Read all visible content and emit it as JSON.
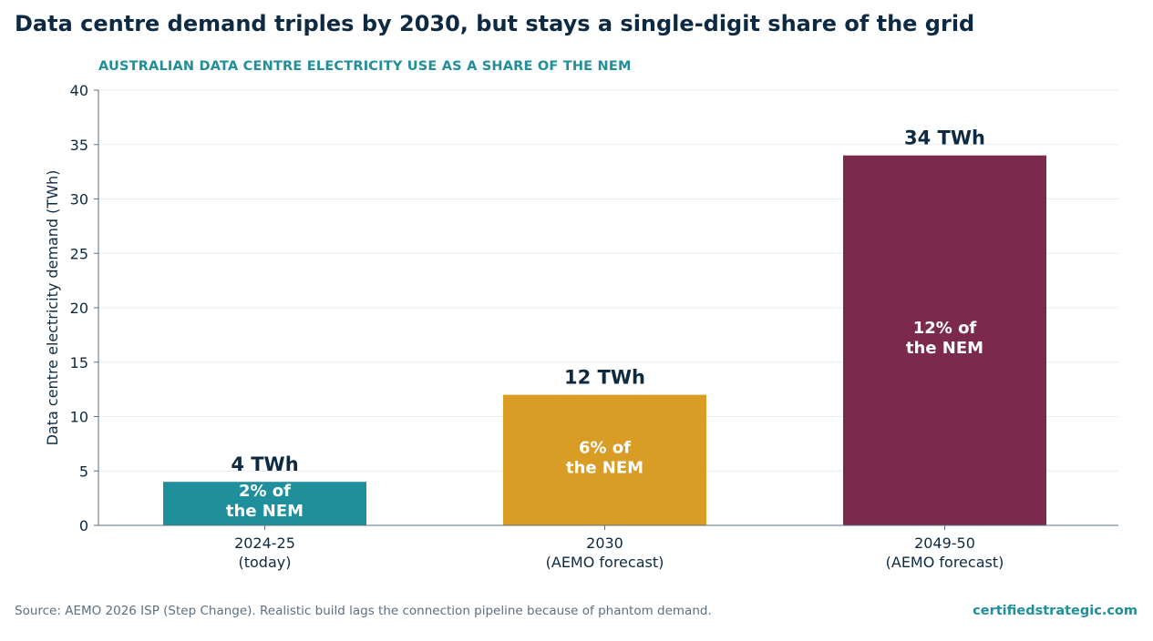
{
  "title": "Data centre demand triples by 2030, but stays a single-digit share of the grid",
  "subtitle": "AUSTRALIAN DATA CENTRE ELECTRICITY USE AS A SHARE OF THE NEM",
  "footer": {
    "source": "Source: AEMO 2026 ISP (Step Change). Realistic build lags the connection pipeline because of phantom demand.",
    "brand": "certifiedstrategic.com"
  },
  "colors": {
    "title": "#0d2a42",
    "accent": "#1f8f9b",
    "bar_2024": "#1f8f9b",
    "bar_2030": "#d99c24",
    "bar_2050": "#7b2a4e",
    "axis": "#5b6f80",
    "grid": "#e8ecef"
  },
  "chart_data": {
    "type": "bar",
    "title": "",
    "xlabel": "",
    "ylabel": "Data centre electricity demand (TWh)",
    "ylim": [
      0,
      40
    ],
    "yticks": [
      "0",
      "5",
      "10",
      "15",
      "20",
      "25",
      "30",
      "35",
      "40"
    ],
    "grid": true,
    "categories": [
      [
        "2024-25",
        "(today)"
      ],
      [
        "2030",
        "(AEMO forecast)"
      ],
      [
        "2049-50",
        "(AEMO forecast)"
      ]
    ],
    "values": [
      4,
      12,
      34
    ],
    "value_labels": [
      "4 TWh",
      "12 TWh",
      "34 TWh"
    ],
    "inner_labels": [
      [
        "2% of",
        "the NEM"
      ],
      [
        "6% of",
        "the NEM"
      ],
      [
        "12% of",
        "the NEM"
      ]
    ],
    "bar_colors": [
      "#1f8f9b",
      "#d99c24",
      "#7b2a4e"
    ]
  }
}
